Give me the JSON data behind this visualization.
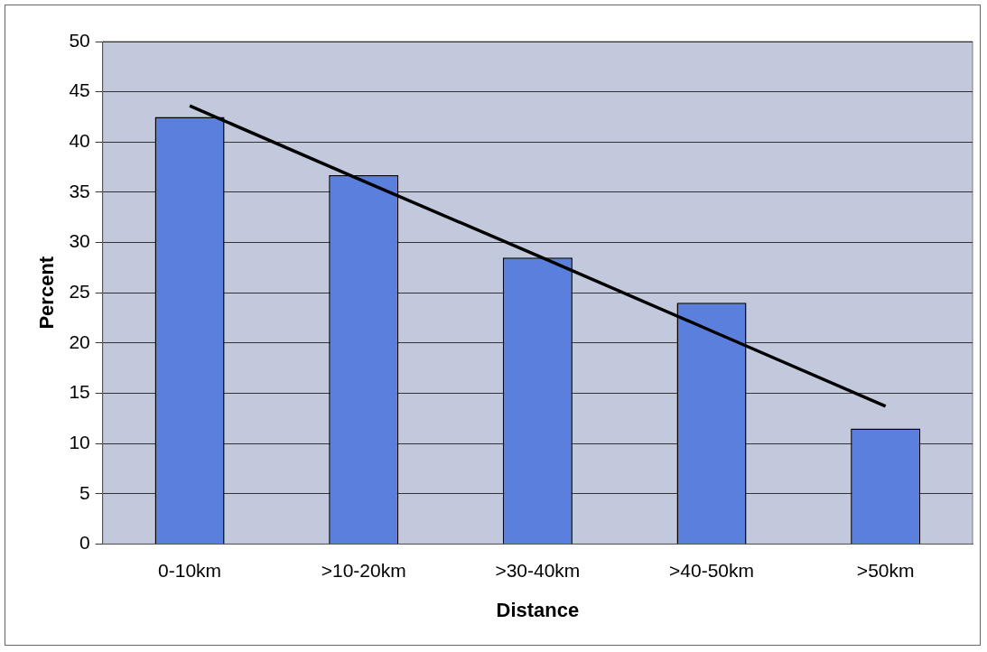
{
  "chart_data": {
    "type": "bar",
    "xlabel": "Distance",
    "ylabel": "Percent",
    "categories": [
      "0-10km",
      ">10-20km",
      ">30-40km",
      ">40-50km",
      ">50km"
    ],
    "series": [
      {
        "color": "#5b7fdc",
        "values": [
          42.5,
          36.7,
          28.5,
          24,
          11.5
        ]
      },
      {
        "type": "line",
        "color": "#000000",
        "values": [
          43.6,
          36.1,
          28.7,
          21.2,
          13.7
        ],
        "marker": "none"
      }
    ],
    "ylim": [
      0,
      50
    ],
    "yticks": [
      0,
      5,
      10,
      15,
      20,
      25,
      30,
      35,
      40,
      45,
      50
    ],
    "grid": "y",
    "legend": false
  }
}
